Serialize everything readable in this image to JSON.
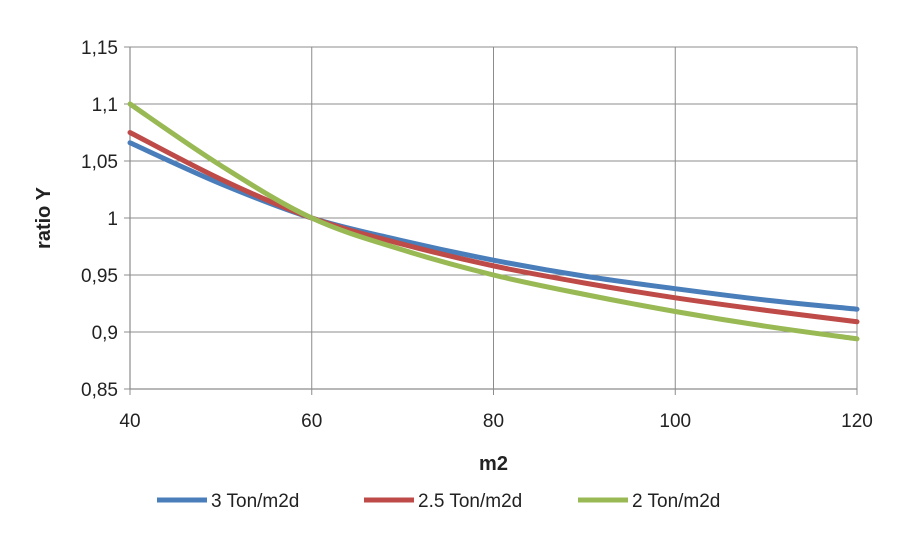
{
  "chart_data": {
    "type": "line",
    "title": "",
    "xlabel": "m2",
    "ylabel": "ratio Y",
    "xlim": [
      40,
      120
    ],
    "ylim": [
      0.85,
      1.15
    ],
    "x_ticks": [
      40,
      60,
      80,
      100,
      120
    ],
    "x_tick_labels": [
      "40",
      "60",
      "80",
      "100",
      "120"
    ],
    "y_ticks": [
      0.85,
      0.9,
      0.95,
      1.0,
      1.05,
      1.1,
      1.15
    ],
    "y_tick_labels": [
      "0,85",
      "0,9",
      "0,95",
      "1",
      "1,05",
      "1,1",
      "1,15"
    ],
    "grid": true,
    "legend_position": "bottom",
    "series": [
      {
        "name": "3 Ton/m2d",
        "color": "#4a7ebb",
        "x": [
          40,
          50,
          60,
          70,
          80,
          90,
          100,
          110,
          120
        ],
        "y": [
          1.066,
          1.03,
          1.0,
          0.98,
          0.963,
          0.949,
          0.938,
          0.928,
          0.92
        ]
      },
      {
        "name": "2.5 Ton/m2d",
        "color": "#be4b48",
        "x": [
          40,
          50,
          60,
          70,
          80,
          90,
          100,
          110,
          120
        ],
        "y": [
          1.075,
          1.034,
          1.0,
          0.977,
          0.958,
          0.943,
          0.93,
          0.919,
          0.909
        ]
      },
      {
        "name": "2 Ton/m2d",
        "color": "#98b954",
        "x": [
          40,
          50,
          60,
          70,
          80,
          90,
          100,
          110,
          120
        ],
        "y": [
          1.1,
          1.046,
          1.0,
          0.972,
          0.95,
          0.933,
          0.918,
          0.905,
          0.894
        ]
      }
    ]
  }
}
